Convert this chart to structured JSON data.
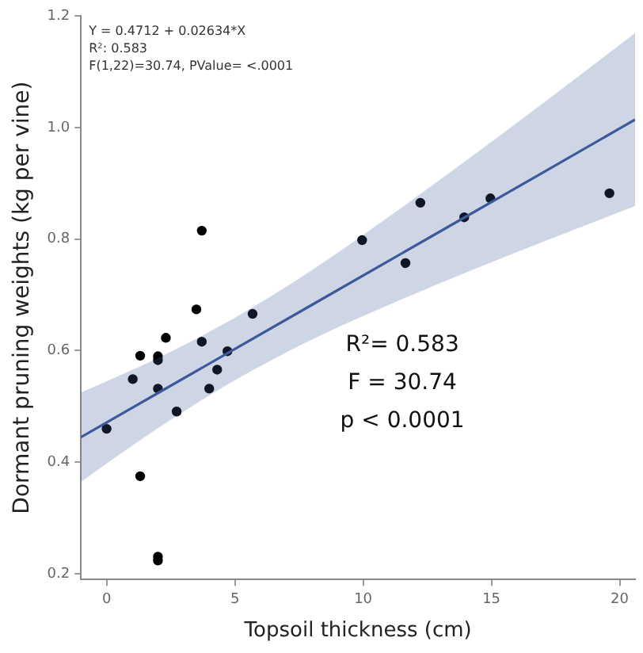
{
  "chart_data": {
    "type": "scatter",
    "xlabel": "Topsoil thickness (cm)",
    "ylabel": "Dormant pruning weights (kg per vine)",
    "xlim": [
      -1,
      20.6
    ],
    "xticks": [
      0,
      5,
      10,
      15,
      20
    ],
    "ylim": [
      0.19,
      1.2
    ],
    "yticks": [
      {
        "value": 0.2,
        "label": "0.2"
      },
      {
        "value": 0.4,
        "label": "0.4"
      },
      {
        "value": 0.6,
        "label": "0.6"
      },
      {
        "value": 0.8,
        "label": "0.8"
      },
      {
        "value": 1,
        "label": "1.0"
      },
      {
        "value": 1.2,
        "label": "1.2"
      }
    ],
    "grid": false,
    "legend": false,
    "series": [
      {
        "type": "line",
        "color": "#3b5a9c",
        "x": [
          -1,
          2,
          5,
          8,
          11,
          14,
          17,
          20.6
        ],
        "values": [
          0.445,
          0.524,
          0.603,
          0.682,
          0.761,
          0.84,
          0.919,
          1.014
        ],
        "lower": [
          0.365,
          0.461,
          0.547,
          0.62,
          0.682,
          0.74,
          0.795,
          0.859
        ],
        "upper": [
          0.525,
          0.587,
          0.659,
          0.744,
          0.84,
          0.94,
          1.043,
          1.169
        ]
      },
      {
        "color": "#000000",
        "marker": "circle",
        "x": [
          0,
          1.02,
          1.31,
          1.31,
          2,
          2,
          2,
          2,
          2,
          2.31,
          2.73,
          3.5,
          3.71,
          3.71,
          4,
          4.31,
          4.71,
          5.69,
          9.96,
          11.65,
          12.23,
          13.94,
          14.96,
          19.6
        ],
        "values": [
          0.46,
          0.549,
          0.591,
          0.375,
          0.59,
          0.583,
          0.532,
          0.231,
          0.224,
          0.623,
          0.491,
          0.674,
          0.815,
          0.616,
          0.532,
          0.566,
          0.599,
          0.666,
          0.798,
          0.757,
          0.865,
          0.839,
          0.873,
          0.882
        ]
      }
    ],
    "annotations": [
      "Y = 0.4712 + 0.02634*X",
      "R²: 0.583",
      "F(1,22)=30.74, PValue= <.0001",
      "R²= 0.583",
      "F = 30.74",
      "p < 0.0001"
    ]
  }
}
